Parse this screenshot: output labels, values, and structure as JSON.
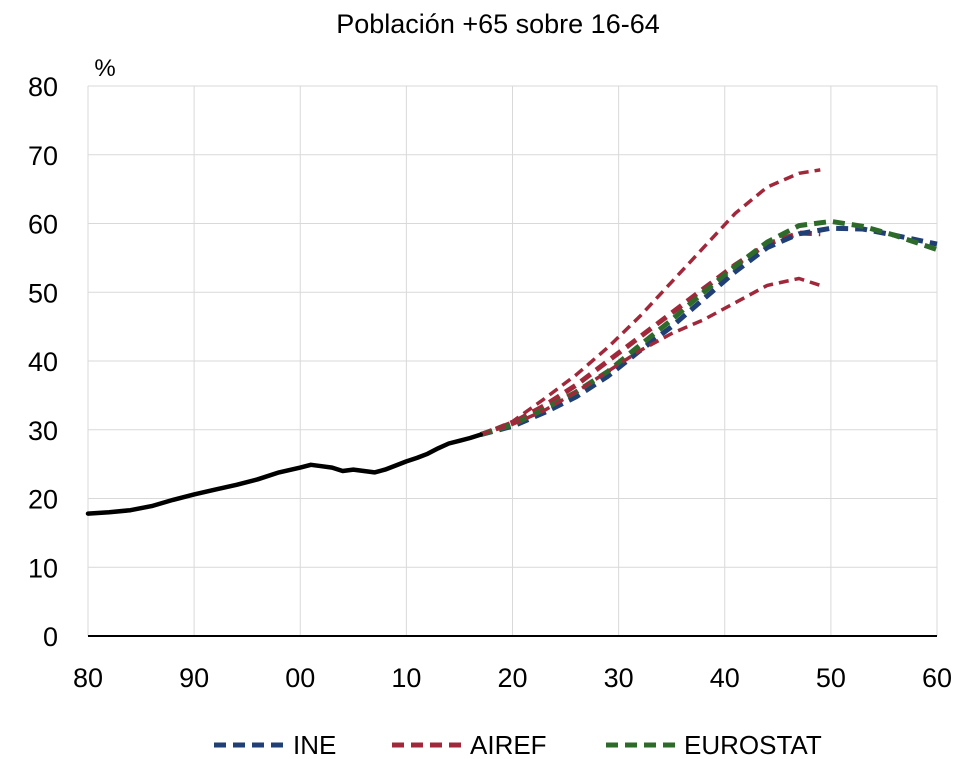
{
  "chart_data": {
    "type": "line",
    "title": "Población +65 sobre 16-64",
    "ylabel": "%",
    "xlabel": "",
    "ylim": [
      0,
      80
    ],
    "xlim": [
      1980,
      2060
    ],
    "yticks": [
      0,
      10,
      20,
      30,
      40,
      50,
      60,
      70,
      80
    ],
    "yticklabels": [
      "0",
      "10",
      "20",
      "30",
      "40",
      "50",
      "60",
      "70",
      "80"
    ],
    "xticks": [
      1980,
      1990,
      2000,
      2010,
      2020,
      2030,
      2040,
      2050,
      2060
    ],
    "xticklabels": [
      "80",
      "90",
      "00",
      "10",
      "20",
      "30",
      "40",
      "50",
      "60"
    ],
    "grid": "vertical and horizontal",
    "legend_position": "bottom",
    "legend": [
      "INE",
      "AIREF",
      "EUROSTAT"
    ],
    "colors": {
      "historical": "#000000",
      "INE": "#1f3f75",
      "AIREF": "#a0283a",
      "EUROSTAT": "#2e6b2b",
      "grid": "#d9d9d9"
    },
    "series": [
      {
        "style": "solid",
        "color": "#000000",
        "x": [
          1980,
          1982,
          1984,
          1986,
          1988,
          1990,
          1992,
          1994,
          1996,
          1998,
          2000,
          2001,
          2002,
          2003,
          2004,
          2005,
          2006,
          2007,
          2008,
          2009,
          2010,
          2011,
          2012,
          2013,
          2014,
          2015,
          2016,
          2017
        ],
        "y": [
          17.8,
          18.0,
          18.3,
          18.9,
          19.8,
          20.6,
          21.3,
          22.0,
          22.8,
          23.8,
          24.5,
          24.9,
          24.7,
          24.5,
          24.0,
          24.2,
          24.0,
          23.8,
          24.2,
          24.8,
          25.4,
          25.9,
          26.5,
          27.3,
          28.0,
          28.4,
          28.8,
          29.3
        ]
      },
      {
        "name": "INE",
        "style": "dashed",
        "color": "#1f3f75",
        "x": [
          2017,
          2020,
          2023,
          2026,
          2029,
          2032,
          2035,
          2038,
          2041,
          2044,
          2047,
          2050,
          2053,
          2056,
          2060
        ],
        "y": [
          29.3,
          30.5,
          32.5,
          34.8,
          37.8,
          41.5,
          45.0,
          49.0,
          53.0,
          56.5,
          58.5,
          59.3,
          59.2,
          58.3,
          57.0
        ]
      },
      {
        "name": "AIREF",
        "style": "dashed",
        "color": "#a0283a",
        "x": [
          2017,
          2020,
          2023,
          2026,
          2029,
          2032,
          2035,
          2038,
          2041,
          2044,
          2047,
          2049
        ],
        "y": [
          29.3,
          31.0,
          33.5,
          36.5,
          40.0,
          43.5,
          47.0,
          50.5,
          54.0,
          57.0,
          58.6,
          58.5
        ]
      },
      {
        "style": "dashed",
        "color": "#a0283a",
        "x": [
          2017,
          2020,
          2023,
          2026,
          2029,
          2032,
          2035,
          2038,
          2041,
          2044,
          2047,
          2049
        ],
        "y": [
          29.3,
          31.2,
          34.5,
          38.0,
          42.0,
          46.5,
          51.5,
          56.5,
          61.5,
          65.3,
          67.3,
          67.8
        ]
      },
      {
        "style": "dashed",
        "color": "#a0283a",
        "x": [
          2017,
          2020,
          2023,
          2026,
          2029,
          2032,
          2035,
          2038,
          2041,
          2044,
          2047,
          2049
        ],
        "y": [
          29.3,
          30.8,
          32.8,
          35.5,
          38.5,
          41.5,
          44.0,
          46.0,
          48.5,
          51.0,
          52.0,
          51.0
        ]
      },
      {
        "name": "EUROSTAT",
        "style": "dashed",
        "color": "#2e6b2b",
        "x": [
          2017,
          2020,
          2023,
          2026,
          2029,
          2032,
          2035,
          2038,
          2041,
          2044,
          2047,
          2050,
          2053,
          2056,
          2060
        ],
        "y": [
          29.3,
          30.7,
          33.0,
          35.5,
          38.5,
          42.3,
          46.0,
          50.0,
          53.8,
          57.3,
          59.7,
          60.3,
          59.6,
          58.3,
          56.2
        ]
      }
    ]
  }
}
